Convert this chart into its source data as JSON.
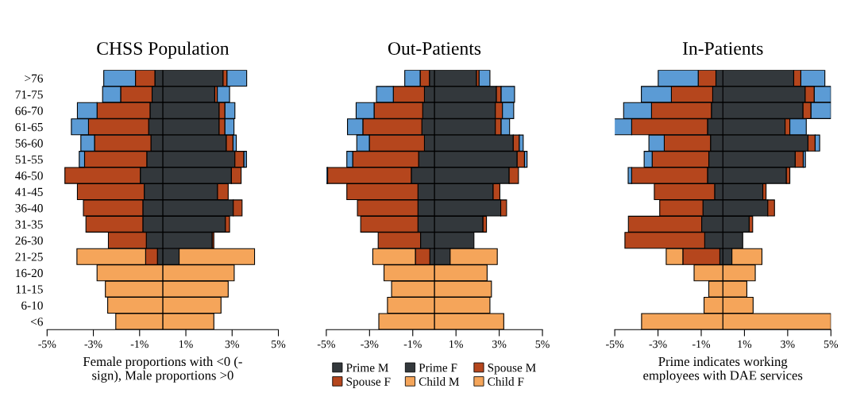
{
  "chart_data": [
    {
      "type": "bar",
      "orientation": "horizontal",
      "stacked": true,
      "title": "CHSS Population",
      "xlabel": "Female proportions with <0 (-\nsign), Male proportions >0",
      "categories": [
        ">76",
        "71-75",
        "66-70",
        "61-65",
        "56-60",
        "51-55",
        "46-50",
        "41-45",
        "36-40",
        "31-35",
        "26-30",
        "21-25",
        "16-20",
        "11-15",
        "6-10",
        "<6"
      ],
      "xlim": [
        -5,
        5
      ],
      "xticks": [
        {
          "value": -5,
          "label": "-5%"
        },
        {
          "value": -3,
          "label": "-3%"
        },
        {
          "value": -1,
          "label": "-1%"
        },
        {
          "value": 1,
          "label": "1%"
        },
        {
          "value": 3,
          "label": "3%"
        },
        {
          "value": 5,
          "label": "5%"
        }
      ],
      "series": [
        {
          "color": "#33383c",
          "values": [
            2.61,
            2.25,
            2.44,
            2.44,
            2.75,
            3.12,
            2.97,
            2.37,
            3.05,
            2.71,
            2.14,
            0.71,
            null,
            null,
            null,
            null
          ]
        },
        {
          "color": "#33383c",
          "values": [
            -0.34,
            -0.46,
            -0.55,
            -0.61,
            -0.51,
            -0.69,
            -0.97,
            -0.8,
            -0.86,
            -0.86,
            -0.71,
            -0.23,
            null,
            null,
            null,
            null
          ]
        },
        {
          "color": "#b5461d",
          "values": [
            0.17,
            0.11,
            0.25,
            0.25,
            0.29,
            0.39,
            0.42,
            0.46,
            0.38,
            0.18,
            0.07,
            null,
            null,
            null,
            null,
            null
          ]
        },
        {
          "color": "#b5461d",
          "values": [
            -0.84,
            -1.36,
            -2.29,
            -2.6,
            -2.44,
            -2.69,
            -3.26,
            -2.89,
            -2.57,
            -2.46,
            -1.64,
            -0.51,
            null,
            null,
            null,
            null
          ]
        },
        {
          "color": "#f5a55a",
          "values": [
            null,
            null,
            null,
            null,
            null,
            null,
            null,
            null,
            null,
            null,
            null,
            3.26,
            3.09,
            2.83,
            2.52,
            2.21
          ]
        },
        {
          "color": "#f5a55a",
          "values": [
            null,
            null,
            null,
            null,
            null,
            null,
            null,
            null,
            null,
            null,
            null,
            -2.97,
            -2.84,
            -2.48,
            -2.38,
            -2.03
          ]
        },
        {
          "color": "#5b9bd5",
          "values": [
            0.85,
            0.53,
            0.43,
            0.39,
            0.14,
            0.11,
            null,
            null,
            null,
            null,
            null,
            null,
            null,
            null,
            null,
            null
          ]
        },
        {
          "color": "#5b9bd5",
          "values": [
            -1.37,
            -0.78,
            -0.85,
            -0.74,
            -0.59,
            -0.23,
            null,
            null,
            null,
            null,
            null,
            null,
            null,
            null,
            null,
            null
          ]
        }
      ]
    },
    {
      "type": "bar",
      "orientation": "horizontal",
      "stacked": true,
      "title": "Out-Patients",
      "tick_labels": "x",
      "legend": "bottom",
      "categories": [
        null,
        null,
        null,
        null,
        null,
        null,
        null,
        null,
        null,
        null,
        null,
        null,
        null,
        null,
        null,
        null
      ],
      "xlim": [
        -5,
        5
      ],
      "xticks": [
        {
          "value": -5,
          "label": "-5%"
        },
        {
          "value": -3,
          "label": "-3%"
        },
        {
          "value": -1,
          "label": "-1%"
        },
        {
          "value": 1,
          "label": "1%"
        },
        {
          "value": 3,
          "label": "3%"
        },
        {
          "value": 5,
          "label": "5%"
        }
      ],
      "series": [
        {
          "name": "Prime M",
          "color": "#33383c",
          "values": [
            1.95,
            2.87,
            2.82,
            2.82,
            3.65,
            3.83,
            3.46,
            2.72,
            3.07,
            2.25,
            1.83,
            0.73,
            null,
            null,
            null,
            null
          ]
        },
        {
          "name": "Prime F",
          "color": "#33383c",
          "values": [
            -0.23,
            -0.46,
            -0.54,
            -0.58,
            -0.46,
            -0.73,
            -1.07,
            -0.76,
            -0.76,
            -0.76,
            -0.64,
            -0.21,
            null,
            null,
            null,
            null
          ]
        },
        {
          "name": "Spouse M",
          "color": "#b5461d",
          "values": [
            0.12,
            0.22,
            0.33,
            0.27,
            0.28,
            0.34,
            0.43,
            0.31,
            0.27,
            0.16,
            null,
            null,
            null,
            null,
            null,
            null
          ]
        },
        {
          "name": "Spouse F",
          "color": "#b5461d",
          "values": [
            -0.43,
            -1.44,
            -2.25,
            -2.73,
            -2.55,
            -3.05,
            -3.87,
            -3.29,
            -2.8,
            -2.65,
            -1.96,
            -0.67,
            null,
            null,
            null,
            null
          ]
        },
        {
          "name": "Child M",
          "color": "#f5a55a",
          "values": [
            null,
            null,
            null,
            null,
            null,
            null,
            null,
            null,
            null,
            null,
            null,
            2.18,
            2.44,
            2.64,
            2.57,
            3.21
          ]
        },
        {
          "name": "Child F",
          "color": "#f5a55a",
          "values": [
            null,
            null,
            null,
            null,
            null,
            null,
            null,
            null,
            null,
            null,
            null,
            -1.97,
            -2.33,
            -1.98,
            -2.17,
            -2.57
          ]
        },
        {
          "color": "#5b9bd5",
          "values": [
            0.5,
            0.62,
            0.52,
            0.39,
            0.18,
            0.12,
            null,
            null,
            null,
            null,
            null,
            null,
            null,
            null,
            null,
            null
          ]
        },
        {
          "color": "#5b9bd5",
          "values": [
            -0.71,
            -0.78,
            -0.83,
            -0.71,
            -0.58,
            -0.27,
            -0.06,
            null,
            null,
            null,
            null,
            null,
            null,
            null,
            null,
            null
          ]
        }
      ]
    },
    {
      "type": "bar",
      "orientation": "horizontal",
      "stacked": true,
      "title": "In-Patients",
      "tick_labels": "x",
      "xlabel": "Prime indicates working\nemployees with DAE services",
      "categories": [
        null,
        null,
        null,
        null,
        null,
        null,
        null,
        null,
        null,
        null,
        null,
        null,
        null,
        null,
        null,
        null
      ],
      "xlim": [
        -5,
        5
      ],
      "xticks": [
        {
          "value": -5,
          "label": "-5%"
        },
        {
          "value": -3,
          "label": "-3%"
        },
        {
          "value": -1,
          "label": "-1%"
        },
        {
          "value": 1,
          "label": "1%"
        },
        {
          "value": 3,
          "label": "3%"
        },
        {
          "value": 5,
          "label": "5%"
        }
      ],
      "series": [
        {
          "color": "#33383c",
          "values": [
            3.28,
            3.81,
            3.71,
            2.88,
            3.94,
            3.35,
            2.94,
            1.85,
            2.08,
            1.22,
            0.92,
            0.42,
            null,
            null,
            null,
            null
          ]
        },
        {
          "color": "#33383c",
          "values": [
            -0.32,
            -0.47,
            -0.53,
            -0.71,
            -0.57,
            -0.65,
            -0.71,
            -0.38,
            -0.92,
            -0.98,
            -0.84,
            -0.14,
            null,
            null,
            null,
            null
          ]
        },
        {
          "color": "#b5461d",
          "values": [
            0.33,
            0.42,
            0.37,
            0.22,
            0.33,
            0.37,
            0.16,
            0.15,
            0.31,
            0.16,
            null,
            null,
            null,
            null,
            null,
            null
          ]
        },
        {
          "color": "#b5461d",
          "values": [
            -0.82,
            -1.91,
            -2.77,
            -3.51,
            -2.14,
            -2.62,
            -3.51,
            -2.79,
            -2.0,
            -3.39,
            -3.69,
            -1.71,
            null,
            null,
            null,
            null
          ]
        },
        {
          "color": "#f5a55a",
          "values": [
            null,
            null,
            null,
            null,
            null,
            null,
            null,
            null,
            null,
            null,
            null,
            1.39,
            1.5,
            1.11,
            1.4,
            5.0
          ]
        },
        {
          "color": "#f5a55a",
          "values": [
            null,
            null,
            null,
            null,
            null,
            null,
            null,
            null,
            null,
            null,
            null,
            -0.77,
            -1.33,
            -0.65,
            -0.87,
            -3.76
          ]
        },
        {
          "color": "#5b9bd5",
          "values": [
            1.11,
            0.77,
            0.92,
            0.76,
            0.21,
            0.1,
            null,
            null,
            null,
            null,
            null,
            null,
            null,
            null,
            null,
            null
          ]
        },
        {
          "color": "#5b9bd5",
          "values": [
            -1.85,
            -1.39,
            -1.29,
            -0.82,
            -0.71,
            -0.37,
            -0.16,
            null,
            null,
            null,
            null,
            null,
            null,
            null,
            null,
            null
          ]
        }
      ]
    }
  ]
}
